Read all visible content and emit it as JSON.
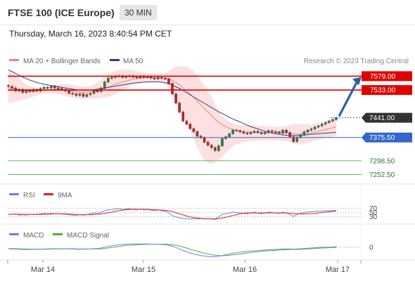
{
  "header": {
    "title": "FTSE 100 (ICE Europe)",
    "interval": "30 MIN",
    "datetime": "Thursday, March 16, 2023 8:40:54 PM CET"
  },
  "legend": {
    "ma20": "MA 20 + Bollinger Bands",
    "ma50": "MA 50",
    "research": "Research © 2023 Trading Central",
    "rsi": "RSI",
    "rsi_ma": "9MA",
    "macd": "MACD",
    "macd_signal": "MACD Signal"
  },
  "colors": {
    "resistance": "#e00000",
    "support_blue": "#3366cc",
    "support_green": "#66bb66",
    "current": "#333333",
    "ma20": "#f08080",
    "ma50": "#224488",
    "bollinger_fill": "#fde0e0",
    "rsi": "#6688dd",
    "rsi_ma": "#dd2222",
    "macd": "#6688dd",
    "macd_signal": "#55aa33",
    "candle_up": "#2a8a3a",
    "candle_down": "#cc2222",
    "arrow": "#2a5fa8"
  },
  "chart_data": [
    {
      "type": "candlestick",
      "panel": "price",
      "x_ticks": [
        "Mar 14",
        "Mar 15",
        "Mar 16",
        "Mar 17"
      ],
      "ylim": [
        7235,
        7615
      ],
      "price_levels": [
        {
          "label": "7579.00",
          "value": 7579,
          "kind": "resistance"
        },
        {
          "label": "7533.00",
          "value": 7533,
          "kind": "resistance"
        },
        {
          "label": "7441.00",
          "value": 7441,
          "kind": "current"
        },
        {
          "label": "7375.50",
          "value": 7375.5,
          "kind": "support"
        },
        {
          "label": "7298.50",
          "value": 7298.5,
          "kind": "support"
        },
        {
          "label": "7252.50",
          "value": 7252.5,
          "kind": "support"
        }
      ],
      "close": [
        7545,
        7540,
        7530,
        7535,
        7525,
        7532,
        7528,
        7535,
        7530,
        7538,
        7542,
        7540,
        7545,
        7540,
        7538,
        7535,
        7530,
        7522,
        7520,
        7515,
        7520,
        7512,
        7518,
        7522,
        7530,
        7528,
        7540,
        7560,
        7572,
        7575,
        7578,
        7580,
        7575,
        7578,
        7580,
        7576,
        7574,
        7578,
        7575,
        7577,
        7573,
        7570,
        7575,
        7572,
        7570,
        7555,
        7520,
        7490,
        7460,
        7430,
        7420,
        7405,
        7395,
        7380,
        7375,
        7360,
        7350,
        7342,
        7332,
        7348,
        7372,
        7378,
        7388,
        7400,
        7398,
        7394,
        7390,
        7388,
        7392,
        7396,
        7392,
        7388,
        7392,
        7398,
        7395,
        7394,
        7390,
        7400,
        7392,
        7378,
        7362,
        7376,
        7384,
        7394,
        7400,
        7404,
        7410,
        7414,
        7420,
        7425,
        7430,
        7435,
        7441
      ],
      "ma20": [
        7540,
        7538,
        7536,
        7534,
        7532,
        7530,
        7529,
        7529,
        7530,
        7531,
        7532,
        7533,
        7534,
        7535,
        7535,
        7534,
        7533,
        7531,
        7529,
        7527,
        7526,
        7525,
        7526,
        7527,
        7529,
        7531,
        7534,
        7538,
        7542,
        7547,
        7552,
        7556,
        7560,
        7563,
        7566,
        7569,
        7571,
        7573,
        7574,
        7575,
        7575,
        7575,
        7575,
        7574,
        7573,
        7570,
        7565,
        7558,
        7550,
        7540,
        7530,
        7520,
        7508,
        7496,
        7484,
        7472,
        7460,
        7448,
        7436,
        7426,
        7418,
        7412,
        7406,
        7402,
        7399,
        7397,
        7395,
        7394,
        7393,
        7393,
        7393,
        7392,
        7392,
        7392,
        7392,
        7392,
        7391,
        7391,
        7390,
        7389,
        7388,
        7387,
        7387,
        7388,
        7389,
        7391,
        7393,
        7396,
        7399,
        7402,
        7405,
        7408,
        7411
      ],
      "bb_upper": [
        7600,
        7590,
        7580,
        7570,
        7560,
        7552,
        7546,
        7542,
        7540,
        7540,
        7542,
        7544,
        7547,
        7550,
        7552,
        7553,
        7553,
        7552,
        7550,
        7547,
        7545,
        7544,
        7545,
        7547,
        7552,
        7558,
        7566,
        7576,
        7585,
        7592,
        7597,
        7600,
        7601,
        7601,
        7600,
        7598,
        7596,
        7594,
        7592,
        7590,
        7589,
        7588,
        7588,
        7588,
        7590,
        7596,
        7605,
        7610,
        7612,
        7612,
        7610,
        7605,
        7595,
        7580,
        7565,
        7548,
        7530,
        7508,
        7485,
        7462,
        7446,
        7436,
        7428,
        7422,
        7418,
        7416,
        7416,
        7416,
        7416,
        7416,
        7415,
        7414,
        7413,
        7412,
        7411,
        7411,
        7411,
        7412,
        7414,
        7417,
        7420,
        7421,
        7420,
        7419,
        7419,
        7420,
        7421,
        7423,
        7426,
        7430,
        7434,
        7439,
        7443
      ],
      "bb_lower": [
        7490,
        7492,
        7494,
        7497,
        7500,
        7504,
        7508,
        7512,
        7516,
        7519,
        7521,
        7522,
        7522,
        7521,
        7519,
        7516,
        7513,
        7510,
        7507,
        7505,
        7504,
        7503,
        7503,
        7504,
        7505,
        7506,
        7507,
        7508,
        7510,
        7514,
        7520,
        7526,
        7532,
        7538,
        7544,
        7549,
        7553,
        7556,
        7558,
        7560,
        7561,
        7561,
        7560,
        7558,
        7553,
        7540,
        7520,
        7495,
        7470,
        7445,
        7420,
        7395,
        7370,
        7345,
        7320,
        7300,
        7290,
        7288,
        7292,
        7300,
        7312,
        7324,
        7336,
        7346,
        7352,
        7356,
        7360,
        7362,
        7364,
        7365,
        7366,
        7366,
        7366,
        7366,
        7366,
        7366,
        7366,
        7365,
        7363,
        7360,
        7355,
        7352,
        7352,
        7355,
        7358,
        7362,
        7366,
        7369,
        7372,
        7374,
        7376,
        7378,
        7380
      ],
      "ma50": [
        7600,
        7594,
        7588,
        7582,
        7576,
        7571,
        7566,
        7562,
        7558,
        7555,
        7552,
        7550,
        7548,
        7546,
        7544,
        7542,
        7540,
        7538,
        7536,
        7534,
        7533,
        7532,
        7532,
        7533,
        7534,
        7536,
        7538,
        7540,
        7542,
        7544,
        7546,
        7548,
        7550,
        7552,
        7554,
        7556,
        7557,
        7558,
        7559,
        7560,
        7560,
        7560,
        7560,
        7559,
        7557,
        7554,
        7549,
        7544,
        7538,
        7531,
        7524,
        7517,
        7510,
        7503,
        7496,
        7489,
        7482,
        7475,
        7468,
        7461,
        7455,
        7449,
        7443,
        7437,
        7432,
        7427,
        7422,
        7417,
        7412,
        7408,
        7404,
        7400,
        7396,
        7393,
        7390,
        7388,
        7386,
        7384,
        7383,
        7382,
        7382,
        7382,
        7383,
        7384,
        7385,
        7386,
        7387,
        7388,
        7389,
        7390,
        7391,
        7392,
        7393
      ]
    },
    {
      "type": "line",
      "panel": "rsi",
      "series": [
        {
          "name": "RSI",
          "values": [
            40,
            42,
            44,
            38,
            40,
            38,
            42,
            40,
            42,
            44,
            46,
            44,
            46,
            44,
            45,
            43,
            42,
            40,
            38,
            36,
            40,
            38,
            40,
            44,
            48,
            46,
            52,
            58,
            62,
            64,
            66,
            68,
            64,
            66,
            68,
            64,
            62,
            66,
            62,
            64,
            60,
            58,
            62,
            58,
            56,
            48,
            36,
            30,
            26,
            22,
            22,
            20,
            22,
            20,
            22,
            20,
            22,
            20,
            18,
            30,
            42,
            44,
            48,
            52,
            50,
            48,
            46,
            44,
            48,
            52,
            48,
            44,
            48,
            52,
            50,
            48,
            46,
            52,
            48,
            40,
            32,
            42,
            46,
            50,
            52,
            54,
            56,
            56,
            57,
            58,
            58,
            59,
            60
          ]
        },
        {
          "name": "9MA",
          "values": [
            42,
            42,
            42,
            42,
            41,
            41,
            41,
            41,
            41,
            41,
            42,
            42,
            43,
            44,
            44,
            44,
            44,
            43,
            42,
            41,
            40,
            40,
            40,
            40,
            41,
            42,
            44,
            46,
            49,
            52,
            55,
            58,
            61,
            63,
            64,
            65,
            65,
            65,
            65,
            65,
            64,
            63,
            62,
            61,
            60,
            58,
            54,
            49,
            44,
            39,
            34,
            30,
            27,
            25,
            23,
            22,
            22,
            21,
            21,
            22,
            25,
            28,
            32,
            36,
            40,
            44,
            47,
            48,
            48,
            48,
            48,
            48,
            48,
            48,
            48,
            48,
            48,
            48,
            48,
            47,
            45,
            44,
            44,
            44,
            44,
            45,
            46,
            48,
            50,
            52,
            54,
            55,
            56
          ]
        }
      ],
      "ylim": [
        0,
        100
      ],
      "levels": [
        {
          "label": "70",
          "value": 70
        },
        {
          "label": "50",
          "value": 50
        },
        {
          "label": "30",
          "value": 30
        }
      ]
    },
    {
      "type": "line",
      "panel": "macd",
      "series": [
        {
          "name": "MACD",
          "values": [
            -6,
            -7,
            -8,
            -8,
            -9,
            -9,
            -9,
            -9,
            -8,
            -8,
            -7,
            -7,
            -6,
            -6,
            -6,
            -6,
            -6,
            -7,
            -7,
            -8,
            -8,
            -8,
            -8,
            -7,
            -6,
            -5,
            -3,
            0,
            3,
            6,
            8,
            10,
            11,
            12,
            13,
            13,
            13,
            13,
            13,
            13,
            12,
            12,
            12,
            11,
            10,
            8,
            4,
            -1,
            -7,
            -13,
            -18,
            -23,
            -27,
            -30,
            -33,
            -35,
            -37,
            -38,
            -38,
            -36,
            -33,
            -30,
            -27,
            -24,
            -22,
            -20,
            -18,
            -17,
            -15,
            -14,
            -13,
            -12,
            -11,
            -10,
            -9,
            -9,
            -8,
            -7,
            -7,
            -7,
            -8,
            -7,
            -6,
            -5,
            -4,
            -3,
            -2,
            -1,
            0,
            0,
            0,
            1,
            2
          ]
        },
        {
          "name": "MACD Signal",
          "values": [
            -5,
            -5,
            -6,
            -6,
            -7,
            -7,
            -8,
            -8,
            -8,
            -8,
            -8,
            -8,
            -7,
            -7,
            -7,
            -7,
            -6,
            -6,
            -6,
            -7,
            -7,
            -7,
            -7,
            -7,
            -7,
            -7,
            -6,
            -5,
            -3,
            -1,
            1,
            3,
            5,
            7,
            8,
            9,
            10,
            11,
            11,
            12,
            12,
            12,
            12,
            12,
            12,
            11,
            10,
            8,
            5,
            1,
            -3,
            -8,
            -12,
            -16,
            -20,
            -24,
            -27,
            -30,
            -32,
            -33,
            -34,
            -33,
            -32,
            -30,
            -29,
            -27,
            -25,
            -23,
            -21,
            -19,
            -18,
            -16,
            -15,
            -14,
            -13,
            -12,
            -11,
            -10,
            -10,
            -9,
            -9,
            -9,
            -8,
            -8,
            -7,
            -6,
            -5,
            -4,
            -3,
            -3,
            -2,
            -1,
            -1
          ]
        }
      ],
      "ylim": [
        -45,
        25
      ],
      "levels": [
        {
          "label": "0",
          "value": 0
        }
      ]
    }
  ]
}
